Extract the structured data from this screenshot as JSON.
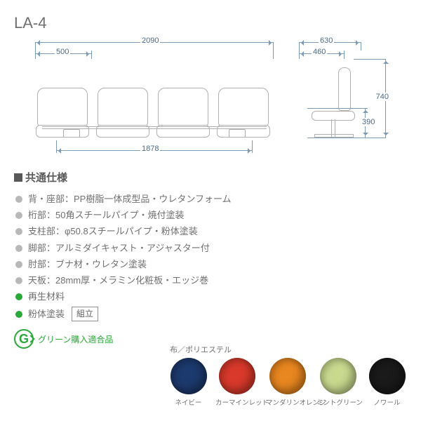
{
  "model": "LA-4",
  "dimensions": {
    "total_width": "2090",
    "seat_width": "500",
    "leg_span": "1878",
    "depth_total": "630",
    "depth_seat": "460",
    "height_total": "740",
    "seat_height": "390"
  },
  "diagram": {
    "line_color": "#b0b0b0",
    "dim_color": "#4a6a8a",
    "dim_line_color": "#7a9ab5",
    "seats": 4
  },
  "spec_title": "共通仕様",
  "bullet_green": "#2aa838",
  "bullet_gray": "#b8b8b8",
  "specs": [
    {
      "bullet": "gray",
      "text": "背・座部：PP樹脂一体成型品・ウレタンフォーム"
    },
    {
      "bullet": "gray",
      "text": "桁部：50角スチールパイプ・焼付塗装"
    },
    {
      "bullet": "gray",
      "text": "支柱部：φ50.8スチールパイプ・粉体塗装"
    },
    {
      "bullet": "gray",
      "text": "脚部：アルミダイキャスト・アジャスター付"
    },
    {
      "bullet": "gray",
      "text": "肘部：ブナ材・ウレタン塗装"
    },
    {
      "bullet": "gray",
      "text": "天板：28mm厚・メラミン化粧板・エッジ巻"
    },
    {
      "bullet": "green",
      "text": "再生材料"
    },
    {
      "bullet": "green",
      "text": "粉体塗装",
      "assembly": "組立"
    }
  ],
  "green_label": "グリーン購入適合品",
  "swatch_header": "布／ポリエステル",
  "swatches": [
    {
      "name": "ネイビー",
      "color": "#1d3a6e"
    },
    {
      "name": "カーマインレッド",
      "color": "#d8392a"
    },
    {
      "name": "マンダリンオレンジ",
      "color": "#e8861f"
    },
    {
      "name": "ミントグリーン",
      "color": "#c9d98e"
    },
    {
      "name": "ノワール",
      "color": "#1a1a1a"
    }
  ]
}
